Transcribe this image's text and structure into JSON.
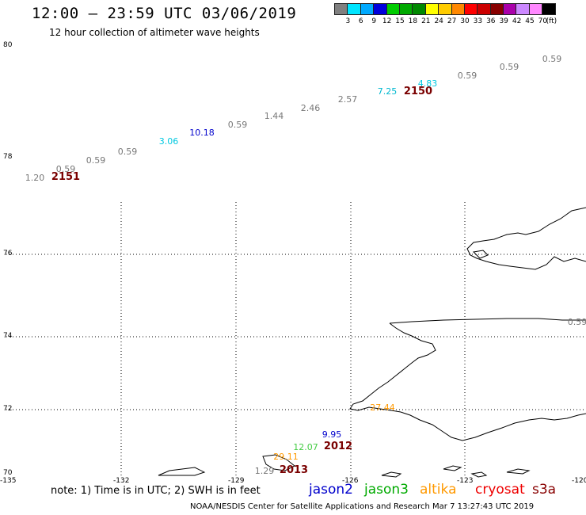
{
  "title": "12:00 — 23:59 UTC 03/06/2019",
  "subtitle": "12 hour collection of altimeter wave heights",
  "colorbar": {
    "colors": [
      "#808080",
      "#00e5ff",
      "#00aaff",
      "#0000dd",
      "#00cc00",
      "#00aa00",
      "#008800",
      "#ffff00",
      "#ffcc00",
      "#ff8800",
      "#ff0000",
      "#cc0000",
      "#880000",
      "#aa00aa",
      "#cc88ff",
      "#ff88ff",
      "#000000"
    ],
    "labels": [
      "3",
      "6",
      "9",
      "12",
      "15",
      "18",
      "21",
      "24",
      "27",
      "30",
      "33",
      "36",
      "39",
      "42",
      "45",
      "70"
    ],
    "unit": "(ft)"
  },
  "lat_labels": [
    "80",
    "78",
    "76",
    "74",
    "72",
    "70"
  ],
  "lon_labels": [
    "-135",
    "-132",
    "-129",
    "-126",
    "-123",
    "-120"
  ],
  "observations": [
    {
      "text": "0.59",
      "color": "#777777"
    },
    {
      "text": "0.59",
      "color": "#777777"
    },
    {
      "text": "0.59",
      "color": "#777777"
    },
    {
      "text": "4.83",
      "color": "#00c8e0"
    },
    {
      "text": "7.25",
      "color": "#00b8d0"
    },
    {
      "text": "2.57",
      "color": "#777777"
    },
    {
      "text": "2.46",
      "color": "#777777"
    },
    {
      "text": "1.44",
      "color": "#777777"
    },
    {
      "text": "0.59",
      "color": "#777777"
    },
    {
      "text": "10.18",
      "color": "#0000cc"
    },
    {
      "text": "3.06",
      "color": "#00c8e0"
    },
    {
      "text": "0.59",
      "color": "#777777"
    },
    {
      "text": "0.59",
      "color": "#777777"
    },
    {
      "text": "0.59",
      "color": "#777777"
    },
    {
      "text": "1.20",
      "color": "#777777"
    },
    {
      "text": "0.59",
      "color": "#777777"
    },
    {
      "text": "27.44",
      "color": "#ff9900"
    },
    {
      "text": "9.95",
      "color": "#0000cc"
    },
    {
      "text": "12.07",
      "color": "#44cc44"
    },
    {
      "text": "29.11",
      "color": "#ff9900"
    },
    {
      "text": "1.29",
      "color": "#777777"
    }
  ],
  "times": [
    "2150",
    "2151",
    "2012",
    "2013"
  ],
  "note": "note: 1) Time is in UTC; 2) SWH is in feet",
  "satellites": [
    {
      "name": "jason2",
      "color": "#0000cc"
    },
    {
      "name": "jason3",
      "color": "#00aa00"
    },
    {
      "name": "altika",
      "color": "#ff9900"
    },
    {
      "name": "cryosat",
      "color": "#ee0000"
    },
    {
      "name": "s3a",
      "color": "#880000"
    }
  ],
  "footer": "NOAA/NESDIS Center for Satellite Applications and Research   Mar  7 13:27:43 UTC 2019"
}
